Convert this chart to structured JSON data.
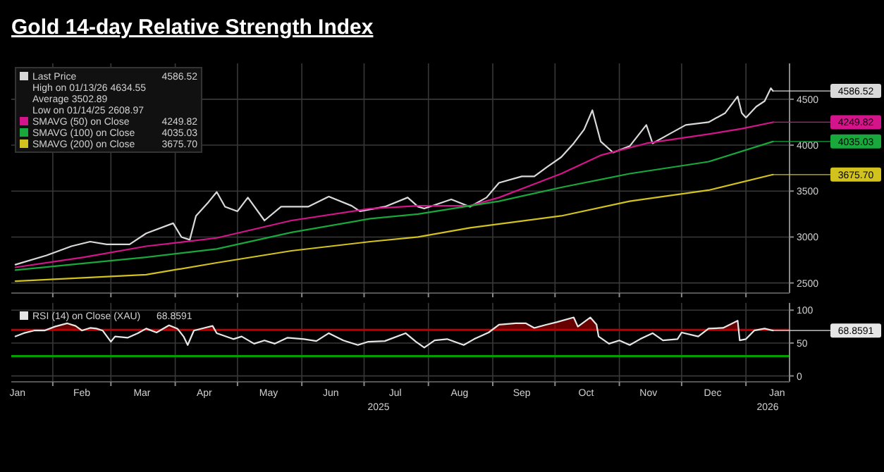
{
  "chart_data": [
    {
      "type": "line",
      "title": "Gold 14-day Relative Strength Index",
      "xlim": [
        "2025-01-12",
        "2026-01-22"
      ],
      "ylim": [
        2390,
        4890
      ],
      "yticks": [
        2500,
        3000,
        3500,
        4000,
        4500
      ],
      "grid": true,
      "legend": "top left",
      "tick_labels": "y",
      "xticks": [
        {
          "value": "2025-02-01",
          "label": null
        },
        {
          "value": "2025-03-01",
          "label": null
        },
        {
          "value": "2025-04-01",
          "label": null
        },
        {
          "value": "2025-05-01",
          "label": null
        },
        {
          "value": "2025-06-01",
          "label": null
        },
        {
          "value": "2025-07-01",
          "label": null
        },
        {
          "value": "2025-08-01",
          "label": null
        },
        {
          "value": "2025-09-01",
          "label": null
        },
        {
          "value": "2025-10-01",
          "label": null
        },
        {
          "value": "2025-11-01",
          "label": null
        },
        {
          "value": "2025-12-01",
          "label": null
        },
        {
          "value": "2026-01-01",
          "label": null
        }
      ],
      "series": [
        {
          "name": "Last Price",
          "color": "#d9d9d9",
          "x": [
            "2025-01-14",
            "2025-01-29",
            "2025-02-10",
            "2025-02-19",
            "2025-02-27",
            "2025-03-10",
            "2025-03-18",
            "2025-03-31",
            "2025-04-04",
            "2025-04-08",
            "2025-04-11",
            "2025-04-17",
            "2025-04-21",
            "2025-04-25",
            "2025-05-01",
            "2025-05-06",
            "2025-05-14",
            "2025-05-22",
            "2025-06-04",
            "2025-06-14",
            "2025-06-25",
            "2025-06-29",
            "2025-07-11",
            "2025-07-22",
            "2025-07-27",
            "2025-07-30",
            "2025-08-12",
            "2025-08-21",
            "2025-08-29",
            "2025-09-04",
            "2025-09-15",
            "2025-09-21",
            "2025-09-27",
            "2025-10-04",
            "2025-10-10",
            "2025-10-15",
            "2025-10-19",
            "2025-10-23",
            "2025-10-29",
            "2025-11-06",
            "2025-11-14",
            "2025-11-17",
            "2025-11-25",
            "2025-12-03",
            "2025-12-14",
            "2025-12-22",
            "2025-12-28",
            "2025-12-30",
            "2026-01-01",
            "2026-01-06",
            "2026-01-10",
            "2026-01-13",
            "2026-01-14"
          ],
          "values": [
            2700,
            2800,
            2900,
            2950,
            2920,
            2920,
            3040,
            3150,
            3000,
            2970,
            3230,
            3380,
            3490,
            3330,
            3280,
            3430,
            3180,
            3330,
            3330,
            3440,
            3340,
            3280,
            3330,
            3430,
            3330,
            3310,
            3410,
            3330,
            3430,
            3590,
            3660,
            3660,
            3760,
            3870,
            4020,
            4170,
            4380,
            4040,
            3920,
            3990,
            4220,
            4020,
            4120,
            4220,
            4250,
            4350,
            4530,
            4350,
            4300,
            4420,
            4480,
            4620,
            4590
          ]
        },
        {
          "name": "SMAVG (50) on Close",
          "color": "#d4148a",
          "x": [
            "2025-01-14",
            "2025-02-16",
            "2025-03-18",
            "2025-04-21",
            "2025-05-27",
            "2025-07-04",
            "2025-07-27",
            "2025-08-21",
            "2025-09-04",
            "2025-10-04",
            "2025-10-23",
            "2025-11-14",
            "2025-12-14",
            "2025-12-30",
            "2026-01-14"
          ],
          "values": [
            2670,
            2780,
            2900,
            2990,
            3180,
            3310,
            3340,
            3340,
            3430,
            3690,
            3890,
            4020,
            4120,
            4180,
            4250
          ]
        },
        {
          "name": "SMAVG (100) on Close",
          "color": "#19a83c",
          "x": [
            "2025-01-14",
            "2025-03-18",
            "2025-04-21",
            "2025-05-27",
            "2025-07-04",
            "2025-07-27",
            "2025-09-04",
            "2025-10-04",
            "2025-11-06",
            "2025-12-14",
            "2026-01-14"
          ],
          "values": [
            2640,
            2780,
            2870,
            3050,
            3200,
            3250,
            3390,
            3540,
            3690,
            3820,
            4040
          ]
        },
        {
          "name": "SMAVG (200) on Close",
          "color": "#d2c21e",
          "x": [
            "2025-01-14",
            "2025-03-18",
            "2025-04-21",
            "2025-05-27",
            "2025-07-04",
            "2025-07-27",
            "2025-08-21",
            "2025-10-04",
            "2025-11-06",
            "2025-12-14",
            "2026-01-14"
          ],
          "values": [
            2520,
            2590,
            2720,
            2850,
            2950,
            3000,
            3100,
            3230,
            3390,
            3510,
            3680
          ]
        }
      ],
      "annotations": [
        {
          "text": "4586.52",
          "x": "2026-01-14",
          "y": 4590
        },
        {
          "text": "4249.82",
          "x": "2026-01-14",
          "y": 4250
        },
        {
          "text": "4035.03",
          "x": "2026-01-14",
          "y": 4040
        },
        {
          "text": "3675.70",
          "x": "2026-01-14",
          "y": 3680
        },
        "High on 01/13/26 4634.55",
        "Average 3502.89",
        "Low on 01/14/25 2608.97"
      ]
    },
    {
      "type": "line",
      "xlim": [
        "2025-01-12",
        "2026-01-22"
      ],
      "ylim": [
        -9,
        111
      ],
      "yticks": [
        0,
        50,
        100
      ],
      "grid": true,
      "legend": "top left",
      "xticks": [
        {
          "value": "2025-01-15",
          "label": "Jan"
        },
        {
          "value": "2025-02-01",
          "label": null
        },
        {
          "value": "2025-02-15",
          "label": "Feb"
        },
        {
          "value": "2025-03-01",
          "label": null
        },
        {
          "value": "2025-03-16",
          "label": "Mar"
        },
        {
          "value": "2025-04-01",
          "label": null
        },
        {
          "value": "2025-04-15",
          "label": "Apr"
        },
        {
          "value": "2025-05-01",
          "label": null
        },
        {
          "value": "2025-05-16",
          "label": "May"
        },
        {
          "value": "2025-06-01",
          "label": null
        },
        {
          "value": "2025-06-15",
          "label": "Jun"
        },
        {
          "value": "2025-07-01",
          "label": null
        },
        {
          "value": "2025-07-16",
          "label": "Jul"
        },
        {
          "value": "2025-08-01",
          "label": null
        },
        {
          "value": "2025-08-16",
          "label": "Aug"
        },
        {
          "value": "2025-09-01",
          "label": null
        },
        {
          "value": "2025-09-15",
          "label": "Sep"
        },
        {
          "value": "2025-10-01",
          "label": null
        },
        {
          "value": "2025-10-16",
          "label": "Oct"
        },
        {
          "value": "2025-11-01",
          "label": null
        },
        {
          "value": "2025-11-15",
          "label": "Nov"
        },
        {
          "value": "2025-12-01",
          "label": null
        },
        {
          "value": "2025-12-16",
          "label": "Dec"
        },
        {
          "value": "2026-01-01",
          "label": null
        },
        {
          "value": "2026-01-16",
          "label": "Jan"
        }
      ],
      "series": [
        {
          "name": "RSI (14) on Close (XAU)",
          "color": "#e6e6e6",
          "x": [
            "2025-01-14",
            "2025-01-18",
            "2025-01-23",
            "2025-01-28",
            "2025-02-02",
            "2025-02-08",
            "2025-02-12",
            "2025-02-15",
            "2025-02-19",
            "2025-02-22",
            "2025-02-25",
            "2025-03-01",
            "2025-03-03",
            "2025-03-09",
            "2025-03-14",
            "2025-03-18",
            "2025-03-23",
            "2025-03-29",
            "2025-04-02",
            "2025-04-05",
            "2025-04-07",
            "2025-04-10",
            "2025-04-15",
            "2025-04-19",
            "2025-04-21",
            "2025-04-29",
            "2025-05-03",
            "2025-05-09",
            "2025-05-14",
            "2025-05-19",
            "2025-05-25",
            "2025-06-02",
            "2025-06-08",
            "2025-06-14",
            "2025-06-21",
            "2025-06-28",
            "2025-07-03",
            "2025-07-11",
            "2025-07-21",
            "2025-07-26",
            "2025-07-30",
            "2025-08-04",
            "2025-08-10",
            "2025-08-18",
            "2025-08-23",
            "2025-08-30",
            "2025-09-04",
            "2025-09-12",
            "2025-09-17",
            "2025-09-21",
            "2025-09-27",
            "2025-10-02",
            "2025-10-10",
            "2025-10-12",
            "2025-10-18",
            "2025-10-21",
            "2025-10-22",
            "2025-10-27",
            "2025-11-01",
            "2025-11-06",
            "2025-11-11",
            "2025-11-17",
            "2025-11-22",
            "2025-11-29",
            "2025-12-01",
            "2025-12-09",
            "2025-12-14",
            "2025-12-21",
            "2025-12-28",
            "2025-12-29",
            "2026-01-01",
            "2026-01-05",
            "2026-01-10",
            "2026-01-14"
          ],
          "values": [
            60,
            65,
            69,
            69,
            75,
            80,
            76,
            69,
            73,
            72,
            69,
            52,
            60,
            58,
            65,
            72,
            66,
            77,
            72,
            60,
            47,
            69,
            73,
            76,
            65,
            56,
            60,
            49,
            54,
            49,
            58,
            56,
            53,
            65,
            54,
            47,
            52,
            53,
            65,
            52,
            43,
            54,
            56,
            47,
            56,
            66,
            78,
            80,
            80,
            73,
            78,
            82,
            89,
            75,
            89,
            78,
            60,
            49,
            54,
            47,
            56,
            65,
            54,
            56,
            66,
            60,
            72,
            73,
            84,
            54,
            56,
            69,
            72,
            69
          ]
        }
      ],
      "ref_lines": [
        {
          "axis": "y",
          "value": 70,
          "color": "#c00000"
        },
        {
          "axis": "y",
          "value": 30,
          "color": "#00a000"
        }
      ],
      "annotations": [
        {
          "text": "68.8591",
          "x": "2026-01-14",
          "y": 69
        },
        "2025",
        "2026"
      ]
    }
  ]
}
